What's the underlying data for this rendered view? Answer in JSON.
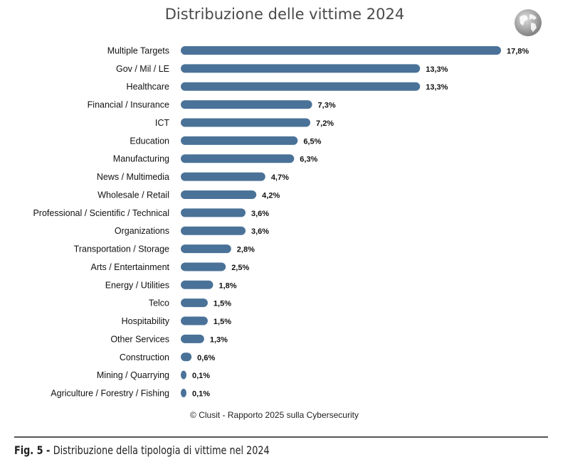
{
  "chart_data": {
    "type": "bar",
    "orientation": "horizontal",
    "title": "Distribuzione delle vittime 2024",
    "categories": [
      "Multiple Targets",
      "Gov / Mil / LE",
      "Healthcare",
      "Financial / Insurance",
      "ICT",
      "Education",
      "Manufacturing",
      "News / Multimedia",
      "Wholesale / Retail",
      "Professional / Scientific / Technical",
      "Organizations",
      "Transportation / Storage",
      "Arts / Entertainment",
      "Energy / Utilities",
      "Telco",
      "Hospitability",
      "Other Services",
      "Construction",
      "Mining / Quarrying",
      "Agriculture / Forestry / Fishing"
    ],
    "values": [
      17.8,
      13.3,
      13.3,
      7.3,
      7.2,
      6.5,
      6.3,
      4.7,
      4.2,
      3.6,
      3.6,
      2.8,
      2.5,
      1.8,
      1.5,
      1.5,
      1.3,
      0.6,
      0.1,
      0.1
    ],
    "data_labels": [
      "17,8%",
      "13,3%",
      "13,3%",
      "7,3%",
      "7,2%",
      "6,5%",
      "6,3%",
      "4,7%",
      "4,2%",
      "3,6%",
      "3,6%",
      "2,8%",
      "2,5%",
      "1,8%",
      "1,5%",
      "1,5%",
      "1,3%",
      "0,6%",
      "0,1%",
      "0,1%"
    ],
    "unit": "%",
    "bar_color": "#4a7298",
    "grid": false,
    "axes_visible": false
  },
  "credit": "© Clusit - Rapporto 2025 sulla Cybersecurity",
  "caption": {
    "prefix": "Fig. 5 - ",
    "text": "Distribuzione della tipologia di vittime nel 2024"
  },
  "icons": {
    "globe": "globe-icon"
  }
}
